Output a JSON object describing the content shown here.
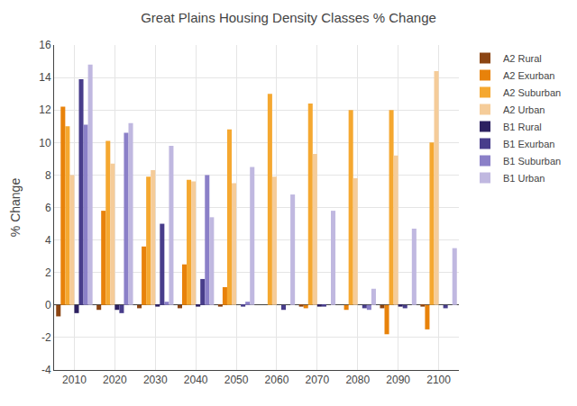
{
  "chart_data": {
    "type": "bar",
    "title": "Great Plains Housing Density Classes % Change",
    "ylabel": "% Change",
    "categories": [
      "2010",
      "2020",
      "2030",
      "2040",
      "2050",
      "2060",
      "2070",
      "2080",
      "2090",
      "2100"
    ],
    "series": [
      {
        "name": "A2 Rural",
        "color": "#8B4513",
        "values": [
          -0.7,
          -0.3,
          -0.2,
          -0.2,
          -0.1,
          0.0,
          -0.1,
          0.0,
          -0.2,
          -0.1
        ]
      },
      {
        "name": "A2 Exurban",
        "color": "#E8820A",
        "values": [
          12.2,
          5.8,
          3.6,
          2.5,
          1.1,
          0.0,
          -0.2,
          -0.3,
          -1.8,
          -1.5
        ]
      },
      {
        "name": "A2 Suburban",
        "color": "#F5A830",
        "values": [
          11.0,
          10.1,
          7.9,
          7.7,
          10.8,
          13.0,
          12.4,
          12.0,
          12.0,
          10.0
        ]
      },
      {
        "name": "A2 Urban",
        "color": "#F5CC99",
        "values": [
          8.0,
          8.7,
          8.3,
          7.6,
          7.5,
          7.9,
          9.3,
          7.8,
          9.2,
          14.4
        ]
      },
      {
        "name": "B1 Rural",
        "color": "#2C2060",
        "values": [
          -0.5,
          -0.3,
          -0.1,
          -0.1,
          0.0,
          0.0,
          -0.1,
          0.0,
          -0.1,
          0.0
        ]
      },
      {
        "name": "B1 Exurban",
        "color": "#483D8B",
        "values": [
          13.9,
          -0.5,
          5.0,
          1.6,
          -0.1,
          -0.3,
          -0.1,
          -0.2,
          -0.2,
          -0.2
        ]
      },
      {
        "name": "B1 Suburban",
        "color": "#8B80C8",
        "values": [
          11.1,
          10.6,
          0.2,
          8.0,
          0.2,
          0.0,
          0.0,
          -0.3,
          0.0,
          0.0
        ]
      },
      {
        "name": "B1 Urban",
        "color": "#C0B8E0",
        "values": [
          14.8,
          11.2,
          9.8,
          5.4,
          8.5,
          6.8,
          5.8,
          1.0,
          4.7,
          3.5
        ]
      }
    ],
    "ylim": [
      -4,
      16
    ],
    "yticks": [
      -4,
      -2,
      0,
      2,
      4,
      6,
      8,
      10,
      12,
      14,
      16
    ],
    "grid": true,
    "legend": "right"
  }
}
